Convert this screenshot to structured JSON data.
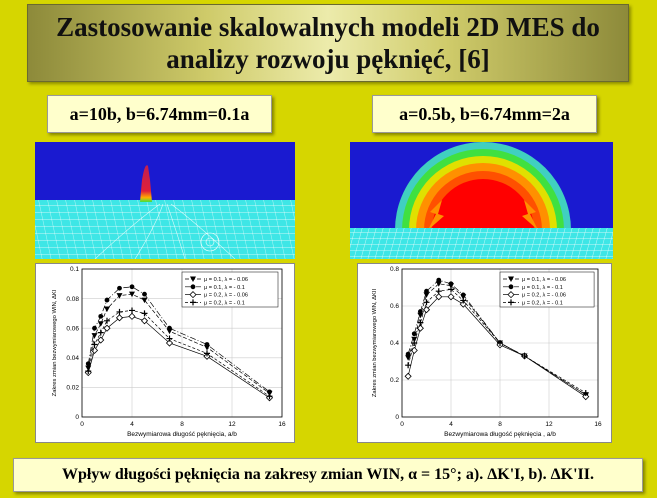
{
  "title": {
    "line1": "Zastosowanie skalowalnych modeli 2D MES do",
    "line2": "analizy rozwoju pęknięć, [6]"
  },
  "cases": [
    {
      "label": "a=10b, b=6.74mm=0.1a"
    },
    {
      "label": "a=0.5b, b=6.74mm=2a"
    }
  ],
  "colors": {
    "background": "#d6d600",
    "fem_blue": "#1a1ad0",
    "fem_mesh": "#3ee6e6",
    "fem_red": "#ff0000"
  },
  "caption": "Wpływ długości pęknięcia na zakresy zmian WIN, α = 15°; a). ΔK'I, b). ΔK'II.",
  "chart_data": [
    {
      "type": "line",
      "xlabel": "Bezwymiarowa długość pęknięcia, a/b",
      "ylabel": "Zakres zmian bezwymiarowego WIN, ΔKI",
      "xlim": [
        0,
        16
      ],
      "ylim": [
        0,
        0.1
      ],
      "xticks": [
        "0",
        "4",
        "8",
        "12",
        "16"
      ],
      "yticks": [
        "0",
        "0.02",
        "0.04",
        "0.06",
        "0.08",
        "0.1"
      ],
      "legend_position": "top-right",
      "grid": true,
      "series": [
        {
          "name": "μ = 0.1, λ = - 0.06",
          "x": [
            0.5,
            1,
            1.5,
            2,
            3,
            4,
            5,
            7,
            10,
            15
          ],
          "y": [
            0.033,
            0.055,
            0.063,
            0.073,
            0.082,
            0.083,
            0.079,
            0.058,
            0.047,
            0.016
          ]
        },
        {
          "name": "μ = 0.1, λ = - 0.1",
          "x": [
            0.5,
            1,
            1.5,
            2,
            3,
            4,
            5,
            7,
            10,
            15
          ],
          "y": [
            0.036,
            0.06,
            0.068,
            0.079,
            0.087,
            0.088,
            0.083,
            0.06,
            0.049,
            0.017
          ]
        },
        {
          "name": "μ = 0.2, λ = - 0.06",
          "x": [
            0.5,
            1,
            1.5,
            2,
            3,
            4,
            5,
            7,
            10,
            15
          ],
          "y": [
            0.03,
            0.045,
            0.052,
            0.06,
            0.067,
            0.068,
            0.065,
            0.05,
            0.041,
            0.013
          ]
        },
        {
          "name": "μ = 0.2, λ = - 0.1",
          "x": [
            0.5,
            1,
            1.5,
            2,
            3,
            4,
            5,
            7,
            10,
            15
          ],
          "y": [
            0.031,
            0.049,
            0.057,
            0.065,
            0.071,
            0.072,
            0.07,
            0.053,
            0.043,
            0.014
          ]
        }
      ]
    },
    {
      "type": "line",
      "xlabel": "Bezwymiarowa długość pęknięcia , a/b",
      "ylabel": "Zakres zmian bezwymiarowego WIN, ΔKII",
      "xlim": [
        0,
        16
      ],
      "ylim": [
        0,
        0.8
      ],
      "xticks": [
        "0",
        "4",
        "8",
        "12",
        "16"
      ],
      "yticks": [
        "0",
        "0.2",
        "0.4",
        "0.6",
        "0.8"
      ],
      "legend_position": "top-right",
      "grid": true,
      "series": [
        {
          "name": "μ = 0.1, λ = - 0.06",
          "x": [
            0.5,
            1,
            1.5,
            2,
            3,
            4,
            5,
            8,
            10,
            15
          ],
          "y": [
            0.32,
            0.42,
            0.55,
            0.66,
            0.72,
            0.71,
            0.65,
            0.4,
            0.33,
            0.12
          ]
        },
        {
          "name": "μ = 0.1, λ = - 0.1",
          "x": [
            0.5,
            1,
            1.5,
            2,
            3,
            4,
            5,
            8,
            10,
            15
          ],
          "y": [
            0.34,
            0.45,
            0.57,
            0.68,
            0.74,
            0.72,
            0.66,
            0.4,
            0.33,
            0.12
          ]
        },
        {
          "name": "μ = 0.2, λ = - 0.06",
          "x": [
            0.5,
            1,
            1.5,
            2,
            3,
            4,
            5,
            8,
            10,
            15
          ],
          "y": [
            0.22,
            0.36,
            0.48,
            0.58,
            0.65,
            0.65,
            0.61,
            0.39,
            0.33,
            0.11
          ]
        },
        {
          "name": "μ = 0.2, λ = - 0.1",
          "x": [
            0.5,
            1,
            1.5,
            2,
            3,
            4,
            5,
            8,
            10,
            15
          ],
          "y": [
            0.28,
            0.4,
            0.51,
            0.62,
            0.68,
            0.69,
            0.63,
            0.4,
            0.33,
            0.13
          ]
        }
      ]
    }
  ]
}
